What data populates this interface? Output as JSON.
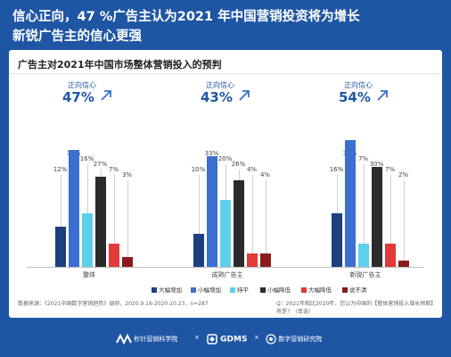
{
  "headline": {
    "line1": "信心正向，47 %广告主认为2021 年中国营销投资将为增长",
    "line2": "新锐广告主的信心更强"
  },
  "chart_data": {
    "type": "bar",
    "title": "广告主对2021年中国市场整体营销投入的预判",
    "ylim": [
      0,
      40
    ],
    "categories": [
      "整体",
      "成熟广告主",
      "新锐广告主"
    ],
    "series": [
      {
        "name": "大幅增加",
        "color": "#1d3f82",
        "values": [
          12,
          10,
          16
        ]
      },
      {
        "name": "小幅增加",
        "color": "#3a6fd0",
        "values": [
          35,
          33,
          38
        ]
      },
      {
        "name": "持平",
        "color": "#5fd0ec",
        "values": [
          16,
          20,
          7
        ]
      },
      {
        "name": "小幅降低",
        "color": "#2b2b2b",
        "values": [
          27,
          26,
          30
        ]
      },
      {
        "name": "大幅降低",
        "color": "#e03a3a",
        "values": [
          7,
          4,
          7
        ]
      },
      {
        "name": "说不清",
        "color": "#8b1a1a",
        "values": [
          3,
          4,
          2
        ]
      }
    ],
    "value_labels": [
      [
        "12%",
        "35%",
        "16%",
        "27%",
        "7%",
        "3%"
      ],
      [
        "10%",
        "33%",
        "20%",
        "26%",
        "4%",
        "4%"
      ],
      [
        "16%",
        "38%",
        "7%",
        "30%",
        "7%",
        "2%"
      ]
    ],
    "confidence": [
      {
        "label": "正向信心",
        "value": "47%"
      },
      {
        "label": "正向信心",
        "value": "43%"
      },
      {
        "label": "正向信心",
        "value": "54%"
      }
    ]
  },
  "notes": {
    "source": "数据来源：《2021中国数字营销趋势》调研，2020.9.16-2020.10.23，n=287",
    "question": "Q：2021年相比2020年，您认为中国的【整体营销投入增长预期】将是？（单选）"
  },
  "footer": {
    "logo1": "秒针营销科学院",
    "sep1": "×",
    "logo2": "GDMS",
    "sep2": "×",
    "logo3": "数字营销研究院"
  },
  "colors": {
    "background": "#1f56a4",
    "accent": "#1f56a4"
  }
}
